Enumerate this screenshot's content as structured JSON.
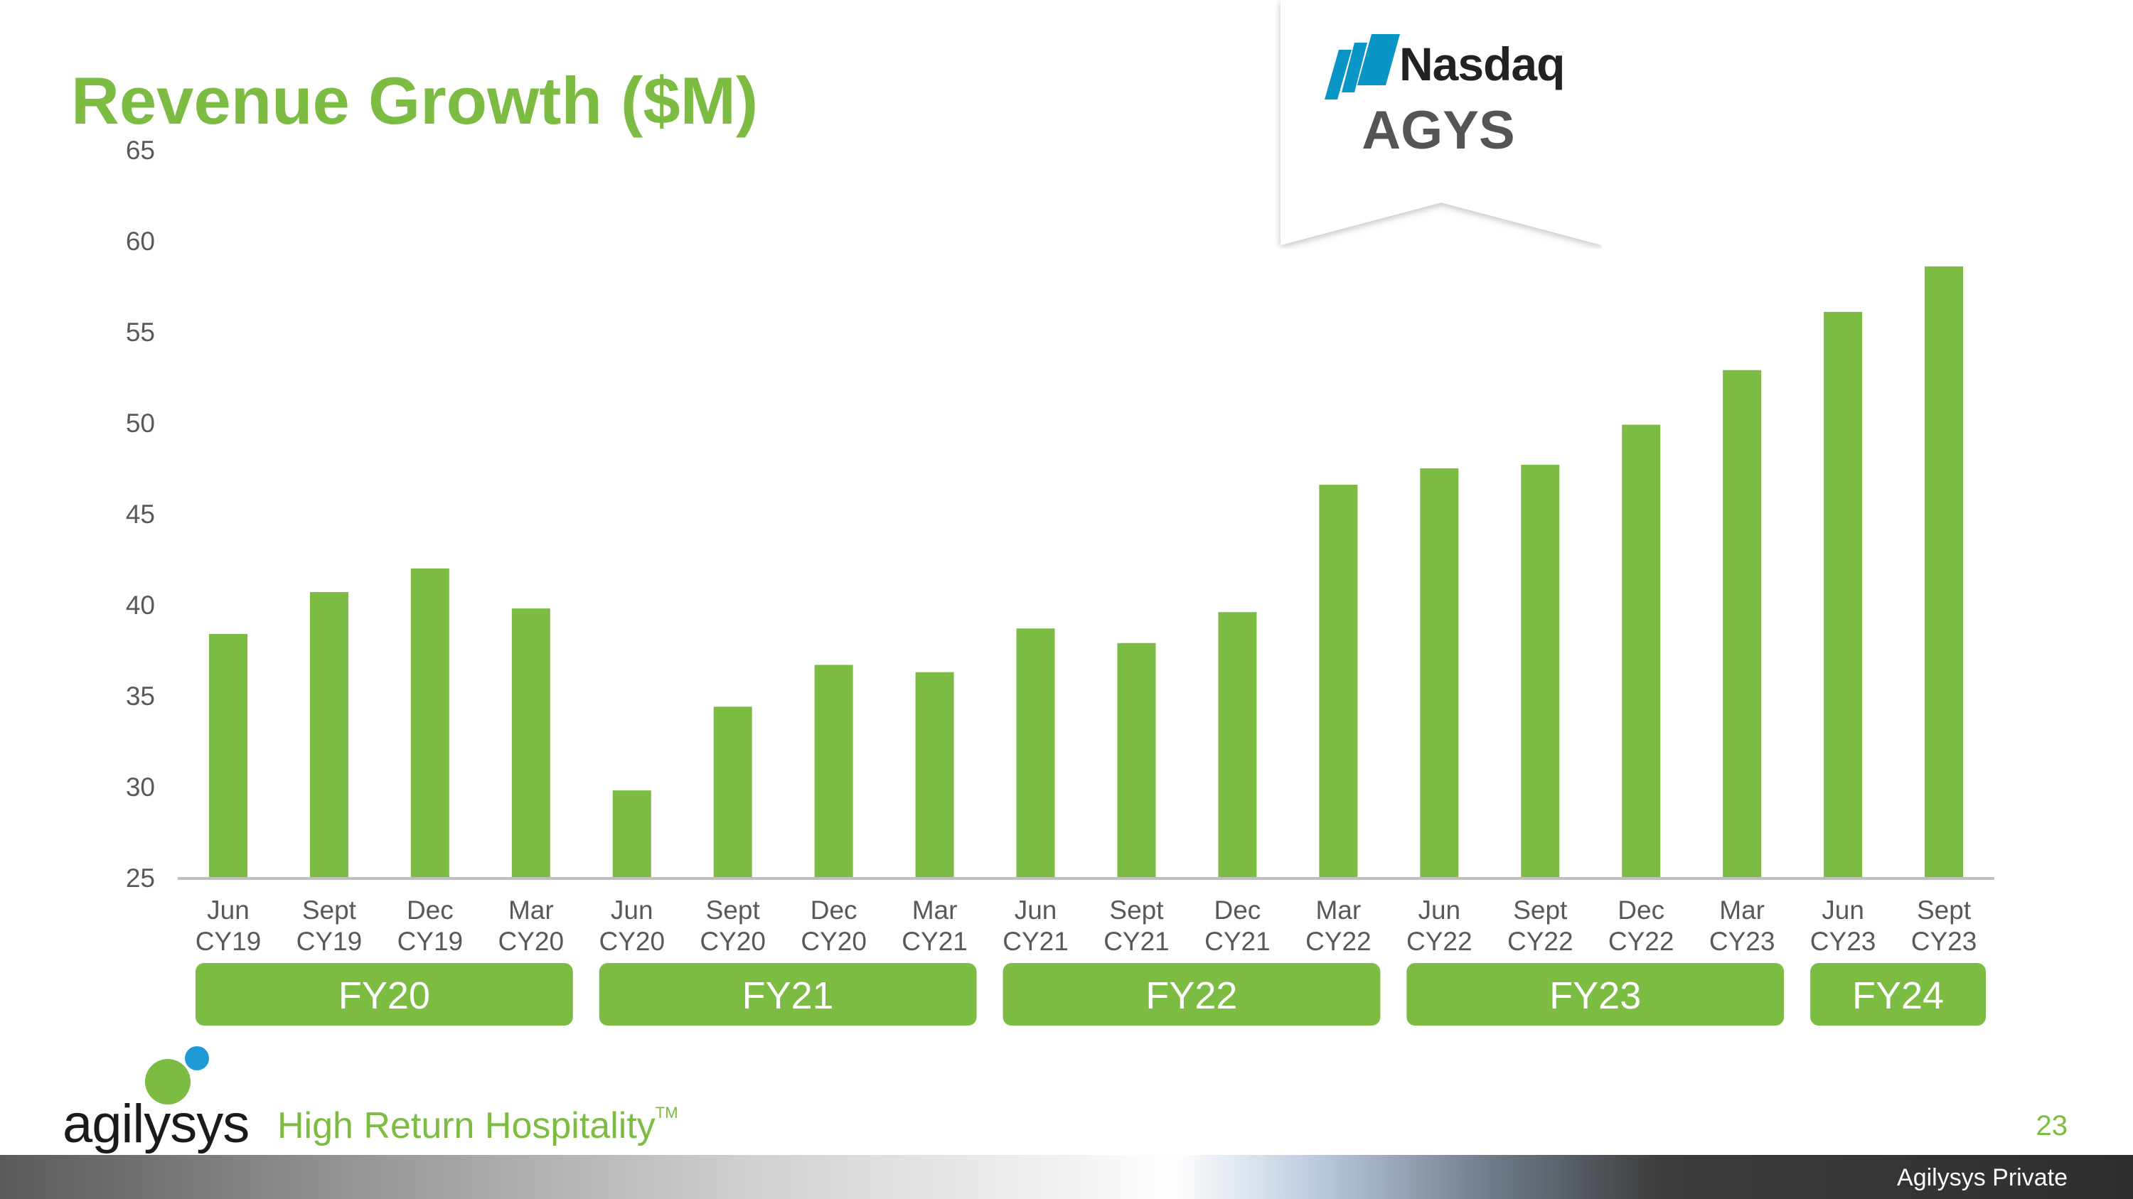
{
  "slide": {
    "title": "Revenue Growth ($M)",
    "page_number": "23",
    "footer_label": "Agilysys Private",
    "tagline": "High Return Hospitality",
    "tagline_mark": "TM",
    "company_logo_text": "agilysys"
  },
  "badge": {
    "exchange": "Nasdaq",
    "ticker": "AGYS"
  },
  "colors": {
    "bar": "#7cbc42",
    "title": "#7cbc42",
    "axis": "#bfbfbf",
    "text": "#595959"
  },
  "chart_data": {
    "type": "bar",
    "title": "Revenue Growth ($M)",
    "xlabel": "",
    "ylabel": "",
    "ylim": [
      25,
      65
    ],
    "yticks": [
      25,
      30,
      35,
      40,
      45,
      50,
      55,
      60,
      65
    ],
    "grid": false,
    "categories": [
      [
        "Jun",
        "CY19"
      ],
      [
        "Sept",
        "CY19"
      ],
      [
        "Dec",
        "CY19"
      ],
      [
        "Mar",
        "CY20"
      ],
      [
        "Jun",
        "CY20"
      ],
      [
        "Sept",
        "CY20"
      ],
      [
        "Dec",
        "CY20"
      ],
      [
        "Mar",
        "CY21"
      ],
      [
        "Jun",
        "CY21"
      ],
      [
        "Sept",
        "CY21"
      ],
      [
        "Dec",
        "CY21"
      ],
      [
        "Mar",
        "CY22"
      ],
      [
        "Jun",
        "CY22"
      ],
      [
        "Sept",
        "CY22"
      ],
      [
        "Dec",
        "CY22"
      ],
      [
        "Mar",
        "CY23"
      ],
      [
        "Jun",
        "CY23"
      ],
      [
        "Sept",
        "CY23"
      ]
    ],
    "values": [
      38.4,
      40.7,
      42.0,
      39.8,
      29.8,
      34.4,
      36.7,
      36.3,
      38.7,
      37.9,
      39.6,
      46.6,
      47.5,
      47.7,
      49.9,
      52.9,
      56.1,
      58.6
    ],
    "fiscal_groups": [
      {
        "label": "FY20",
        "start": 0,
        "end": 3
      },
      {
        "label": "FY21",
        "start": 4,
        "end": 7
      },
      {
        "label": "FY22",
        "start": 8,
        "end": 11
      },
      {
        "label": "FY23",
        "start": 12,
        "end": 15
      },
      {
        "label": "FY24",
        "start": 16,
        "end": 17
      }
    ]
  }
}
